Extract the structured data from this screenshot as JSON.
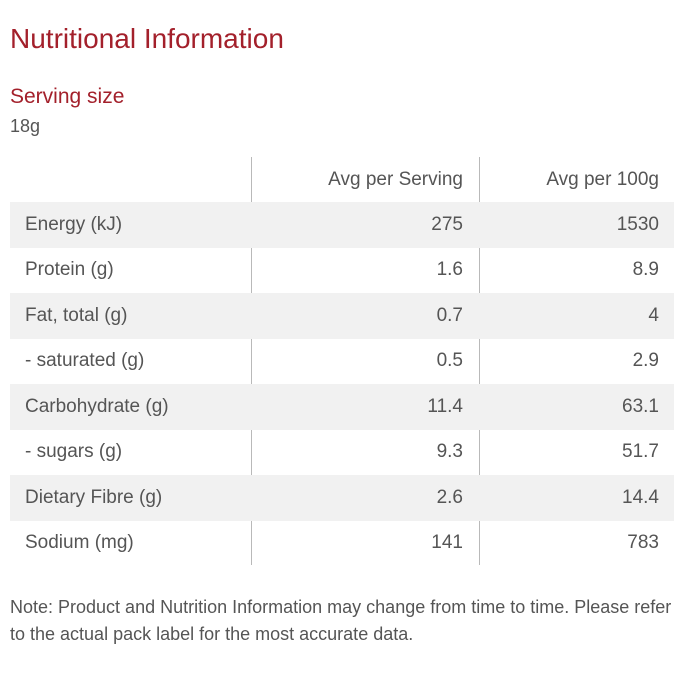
{
  "title": "Nutritional Information",
  "serving": {
    "label": "Serving size",
    "value": "18g"
  },
  "table": {
    "headers": [
      "",
      "Avg per Serving",
      "Avg per 100g"
    ],
    "rows": [
      {
        "nutrient": "Energy (kJ)",
        "per_serving": "275",
        "per_100g": "1530"
      },
      {
        "nutrient": "Protein (g)",
        "per_serving": "1.6",
        "per_100g": "8.9"
      },
      {
        "nutrient": "Fat, total (g)",
        "per_serving": "0.7",
        "per_100g": "4"
      },
      {
        "nutrient": "- saturated (g)",
        "per_serving": "0.5",
        "per_100g": "2.9"
      },
      {
        "nutrient": "Carbohydrate (g)",
        "per_serving": "11.4",
        "per_100g": "63.1"
      },
      {
        "nutrient": "- sugars (g)",
        "per_serving": "9.3",
        "per_100g": "51.7"
      },
      {
        "nutrient": "Dietary Fibre (g)",
        "per_serving": "2.6",
        "per_100g": "14.4"
      },
      {
        "nutrient": "Sodium (mg)",
        "per_serving": "141",
        "per_100g": "783"
      }
    ]
  },
  "note": "Note: Product and Nutrition Information may change from time to time. Please refer to the actual pack label for the most accurate data.",
  "colors": {
    "heading": "#a3202b",
    "text": "#555555",
    "row_shade": "#f1f1f1",
    "divider": "#b9b9b9"
  }
}
